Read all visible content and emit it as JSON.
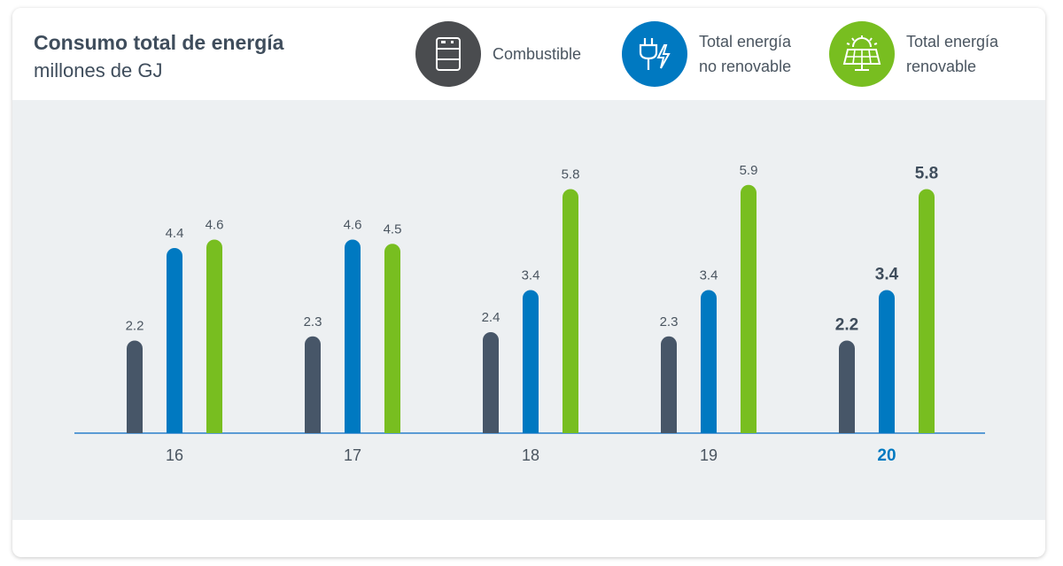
{
  "header": {
    "title": "Consumo total de energía",
    "subtitle": "millones de GJ"
  },
  "legend": [
    {
      "label": "Combustible",
      "color": "#4a4c4f",
      "icon": "fuel-barrel-icon"
    },
    {
      "label": "Total energía\nno renovable",
      "color": "#0079c1",
      "icon": "plug-lightning-icon"
    },
    {
      "label": "Total energía\nrenovable",
      "color": "#78be20",
      "icon": "solar-panel-icon"
    }
  ],
  "chart_data": {
    "type": "bar",
    "categories": [
      "16",
      "17",
      "18",
      "19",
      "20"
    ],
    "highlight_category": "20",
    "series": [
      {
        "name": "Combustible",
        "color": "#475668",
        "values": [
          2.2,
          2.3,
          2.4,
          2.3,
          2.2
        ],
        "labels": [
          "2.2",
          "2.3",
          "2.4",
          "2.3",
          "2.2"
        ]
      },
      {
        "name": "Total energía no renovable",
        "color": "#0079c1",
        "values": [
          4.4,
          4.6,
          3.4,
          3.4,
          3.4
        ],
        "labels": [
          "4.4",
          "4.6",
          "3.4",
          "3.4",
          "3.4"
        ]
      },
      {
        "name": "Total energía renovable",
        "color": "#78be20",
        "values": [
          4.6,
          4.5,
          5.8,
          5.9,
          5.8
        ],
        "labels": [
          "4.6",
          "4.5",
          "5.8",
          "5.9",
          "5.8"
        ]
      }
    ],
    "ylim": [
      0,
      6.5
    ],
    "grid": false,
    "legend_position": "top"
  }
}
